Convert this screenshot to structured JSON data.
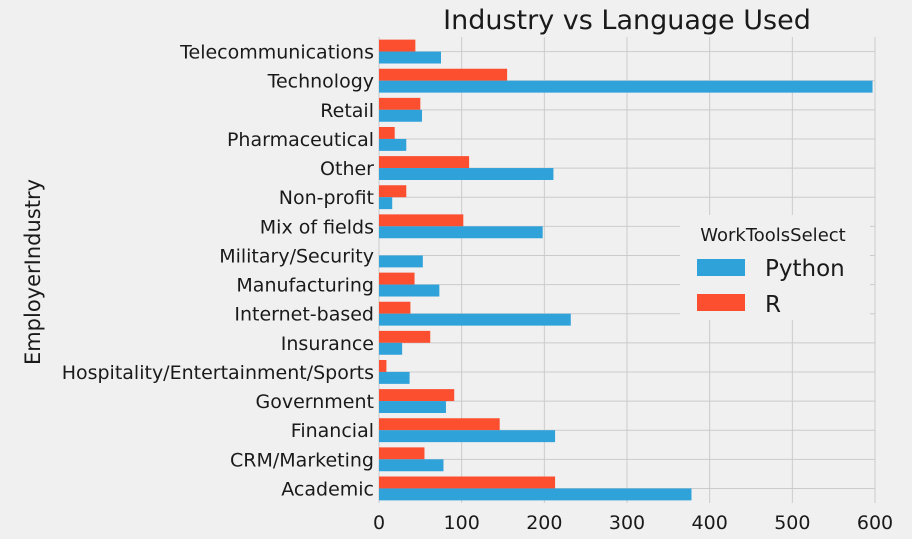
{
  "chart_data": {
    "type": "bar",
    "orientation": "horizontal",
    "title": "Industry vs Language Used",
    "xlabel": "",
    "ylabel": "EmployerIndustry",
    "xlim": [
      0,
      600
    ],
    "xticks": [
      0,
      100,
      200,
      300,
      400,
      500,
      600
    ],
    "grid": true,
    "categories": [
      "Telecommunications",
      "Technology",
      "Retail",
      "Pharmaceutical",
      "Other",
      "Non-profit",
      "Mix of fields",
      "Military/Security",
      "Manufacturing",
      "Internet-based",
      "Insurance",
      "Hospitality/Entertainment/Sports",
      "Government",
      "Financial",
      "CRM/Marketing",
      "Academic"
    ],
    "legend": {
      "title": "WorkToolsSelect",
      "position": "right"
    },
    "series": [
      {
        "name": "Python",
        "color": "#30a2da",
        "values": [
          75,
          597,
          52,
          33,
          211,
          16,
          198,
          53,
          73,
          232,
          28,
          37,
          81,
          213,
          78,
          378
        ]
      },
      {
        "name": "R",
        "color": "#fc4f30",
        "values": [
          44,
          155,
          50,
          19,
          109,
          33,
          102,
          0,
          43,
          38,
          62,
          9,
          91,
          146,
          55,
          213
        ]
      }
    ]
  }
}
